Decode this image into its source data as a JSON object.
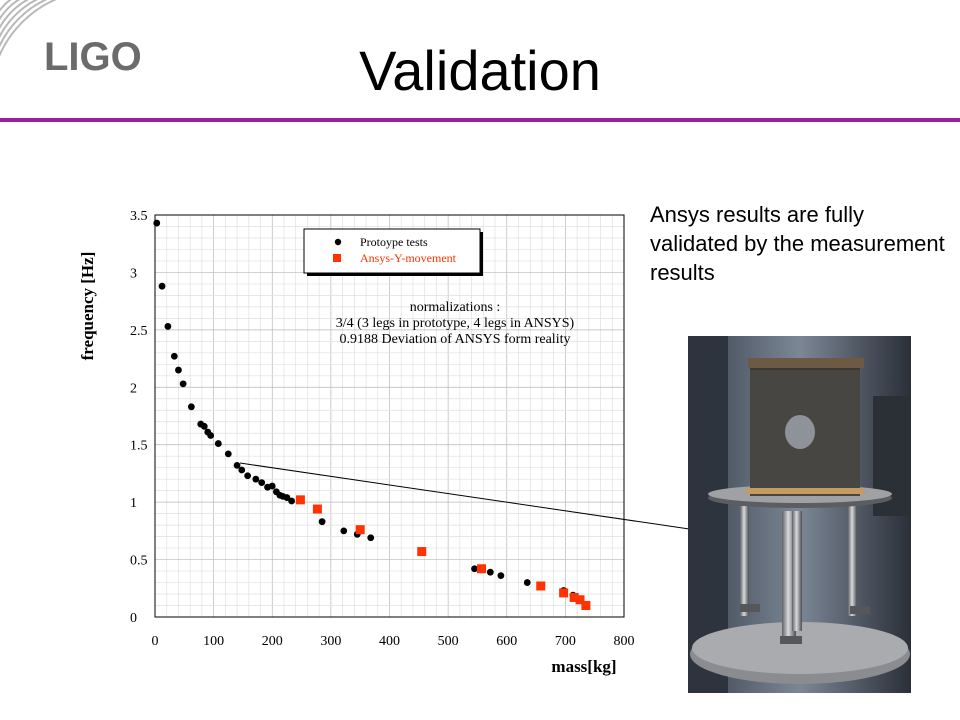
{
  "slide": {
    "title": "Validation",
    "logo_text": "LIGO",
    "caption": "Ansys results are fully validated by the measurement results",
    "accent_color": "#a0209b"
  },
  "chart_data": {
    "type": "scatter",
    "xlabel": "mass[kg]",
    "ylabel": "frequency [Hz]",
    "xlim": [
      0,
      800
    ],
    "ylim": [
      0,
      3.5
    ],
    "x_ticks": [
      0,
      100,
      200,
      300,
      400,
      500,
      600,
      700,
      800
    ],
    "y_ticks": [
      0,
      0.5,
      1,
      1.5,
      2,
      2.5,
      3,
      3.5
    ],
    "y_tick_labels": [
      "0",
      "0.5",
      "1",
      "1.5",
      "2",
      "2.5",
      "3",
      "3.5"
    ],
    "grid": true,
    "legend_position": "top-center",
    "annotation": [
      "normalizations :",
      "3/4 (3 legs in prototype, 4 legs in ANSYS)",
      "0.9188 Deviation of ANSYS form reality"
    ],
    "series": [
      {
        "name": "Protoype tests",
        "marker": "circle",
        "color": "#000000",
        "points": [
          [
            3,
            3.43
          ],
          [
            12,
            2.88
          ],
          [
            22,
            2.53
          ],
          [
            33,
            2.27
          ],
          [
            40,
            2.15
          ],
          [
            48,
            2.03
          ],
          [
            62,
            1.83
          ],
          [
            78,
            1.68
          ],
          [
            84,
            1.66
          ],
          [
            90,
            1.61
          ],
          [
            95,
            1.58
          ],
          [
            108,
            1.51
          ],
          [
            125,
            1.42
          ],
          [
            140,
            1.32
          ],
          [
            148,
            1.28
          ],
          [
            158,
            1.23
          ],
          [
            172,
            1.2
          ],
          [
            182,
            1.17
          ],
          [
            192,
            1.13
          ],
          [
            200,
            1.14
          ],
          [
            207,
            1.09
          ],
          [
            213,
            1.06
          ],
          [
            218,
            1.05
          ],
          [
            225,
            1.04
          ],
          [
            233,
            1.01
          ],
          [
            285,
            0.83
          ],
          [
            322,
            0.75
          ],
          [
            345,
            0.72
          ],
          [
            368,
            0.69
          ],
          [
            545,
            0.42
          ],
          [
            572,
            0.39
          ],
          [
            590,
            0.36
          ],
          [
            635,
            0.3
          ],
          [
            697,
            0.23
          ],
          [
            713,
            0.19
          ]
        ]
      },
      {
        "name": "Ansys-Y-movement",
        "marker": "square",
        "color": "#ff3300",
        "points": [
          [
            248,
            1.02
          ],
          [
            277,
            0.94
          ],
          [
            350,
            0.76
          ],
          [
            455,
            0.57
          ],
          [
            557,
            0.42
          ],
          [
            658,
            0.27
          ],
          [
            697,
            0.21
          ],
          [
            715,
            0.17
          ],
          [
            725,
            0.15
          ],
          [
            735,
            0.1
          ]
        ]
      }
    ]
  }
}
